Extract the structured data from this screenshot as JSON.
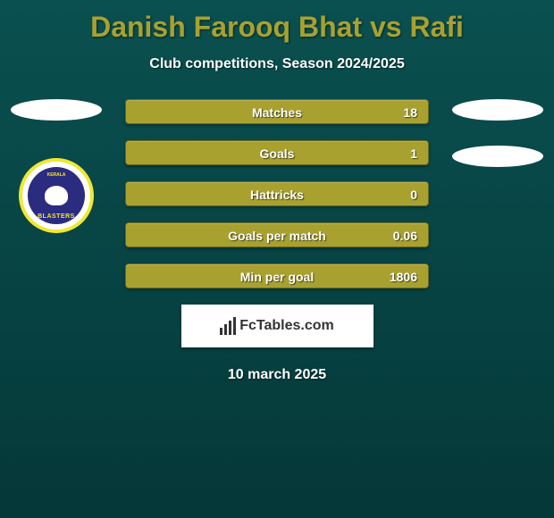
{
  "header": {
    "title": "Danish Farooq Bhat vs Rafi",
    "subtitle": "Club competitions, Season 2024/2025"
  },
  "team_logo": {
    "top_text": "KERALA",
    "bottom_text": "BLASTERS",
    "border_color": "#f0e830",
    "inner_bg": "#2b2b80"
  },
  "stats": [
    {
      "label": "Matches",
      "value": "18"
    },
    {
      "label": "Goals",
      "value": "1"
    },
    {
      "label": "Hattricks",
      "value": "0"
    },
    {
      "label": "Goals per match",
      "value": "0.06"
    },
    {
      "label": "Min per goal",
      "value": "1806"
    }
  ],
  "stat_bar": {
    "bg_color": "#a8a130",
    "border_color": "#6b6820",
    "text_color": "#ffffff"
  },
  "footer": {
    "logo_text": "FcTables.com",
    "date": "10 march 2025"
  },
  "colors": {
    "title": "#a8a130",
    "text": "#ffffff",
    "bg_top": "#0a5050",
    "bg_bottom": "#053838"
  }
}
